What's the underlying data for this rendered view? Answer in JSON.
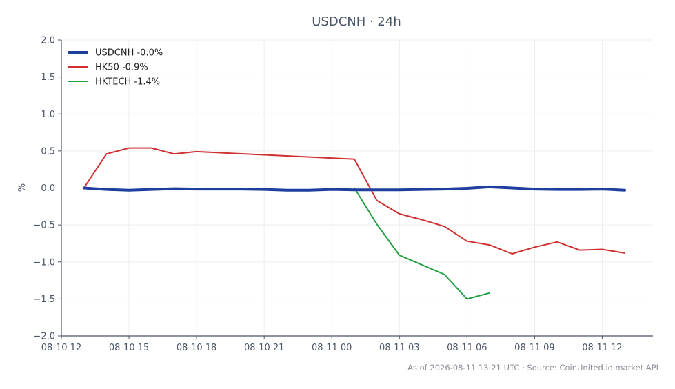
{
  "chart_data": {
    "type": "line",
    "title": "USDCNH · 24h",
    "ylabel": "%",
    "xlabel": "",
    "ylim": [
      -2.0,
      2.0
    ],
    "xlim": [
      "2026-08-10 12:00",
      "2026-08-11 14:15"
    ],
    "yticks": [
      -2.0,
      -1.5,
      -1.0,
      -0.5,
      0.0,
      0.5,
      1.0,
      1.5,
      2.0
    ],
    "ytick_labels": [
      "−2.0",
      "−1.5",
      "−1.0",
      "−0.5",
      "0.0",
      "0.5",
      "1.0",
      "1.5",
      "2.0"
    ],
    "xticks": [
      "2026-08-10 12:00",
      "2026-08-10 15:00",
      "2026-08-10 18:00",
      "2026-08-10 21:00",
      "2026-08-11 00:00",
      "2026-08-11 03:00",
      "2026-08-11 06:00",
      "2026-08-11 09:00",
      "2026-08-11 12:00"
    ],
    "xtick_labels": [
      "08-10 12",
      "08-10 15",
      "08-10 18",
      "08-10 21",
      "08-11 00",
      "08-11 03",
      "08-11 06",
      "08-11 09",
      "08-11 12"
    ],
    "grid": true,
    "zero_line": true,
    "legend_position": "top-left",
    "series": [
      {
        "name": "USDCNH -0.0%",
        "color": "#1f3f9f",
        "x": [
          "2026-08-10 13:00",
          "2026-08-10 14:00",
          "2026-08-10 15:00",
          "2026-08-10 16:00",
          "2026-08-10 17:00",
          "2026-08-10 18:00",
          "2026-08-10 19:00",
          "2026-08-10 20:00",
          "2026-08-10 21:00",
          "2026-08-10 22:00",
          "2026-08-10 23:00",
          "2026-08-11 00:00",
          "2026-08-11 01:00",
          "2026-08-11 02:00",
          "2026-08-11 03:00",
          "2026-08-11 04:00",
          "2026-08-11 05:00",
          "2026-08-11 06:00",
          "2026-08-11 07:00",
          "2026-08-11 08:00",
          "2026-08-11 09:00",
          "2026-08-11 10:00",
          "2026-08-11 11:00",
          "2026-08-11 12:00",
          "2026-08-11 13:00"
        ],
        "values": [
          0.0,
          -0.02,
          -0.03,
          -0.02,
          -0.01,
          -0.015,
          -0.015,
          -0.015,
          -0.02,
          -0.03,
          -0.03,
          -0.02,
          -0.025,
          -0.025,
          -0.025,
          -0.02,
          -0.015,
          -0.005,
          0.015,
          0.0,
          -0.015,
          -0.02,
          -0.02,
          -0.015,
          -0.03
        ]
      },
      {
        "name": "HK50 -0.9%",
        "color": "#d03030",
        "x": [
          "2026-08-10 13:00",
          "2026-08-10 14:00",
          "2026-08-10 15:00",
          "2026-08-10 16:00",
          "2026-08-10 17:00",
          "2026-08-10 18:00",
          "2026-08-11 01:00",
          "2026-08-11 02:00",
          "2026-08-11 03:00",
          "2026-08-11 04:00",
          "2026-08-11 05:00",
          "2026-08-11 06:00",
          "2026-08-11 07:00",
          "2026-08-11 08:00",
          "2026-08-11 09:00",
          "2026-08-11 10:00",
          "2026-08-11 11:00",
          "2026-08-11 12:00",
          "2026-08-11 13:00"
        ],
        "values": [
          0.0,
          0.46,
          0.54,
          0.54,
          0.46,
          0.49,
          0.39,
          -0.17,
          -0.35,
          -0.43,
          -0.52,
          -0.72,
          -0.77,
          -0.89,
          -0.8,
          -0.73,
          -0.84,
          -0.83,
          -0.88
        ]
      },
      {
        "name": "HKTECH -1.4%",
        "color": "#20a040",
        "x": [
          "2026-08-11 01:00",
          "2026-08-11 02:00",
          "2026-08-11 03:00",
          "2026-08-11 04:00",
          "2026-08-11 05:00",
          "2026-08-11 06:00",
          "2026-08-11 07:00"
        ],
        "values": [
          0.0,
          -0.49,
          -0.91,
          -1.04,
          -1.17,
          -1.5,
          -1.42
        ]
      }
    ]
  },
  "footer": "As of 2026-08-11 13:21 UTC · Source: CoinUnited.io market API"
}
